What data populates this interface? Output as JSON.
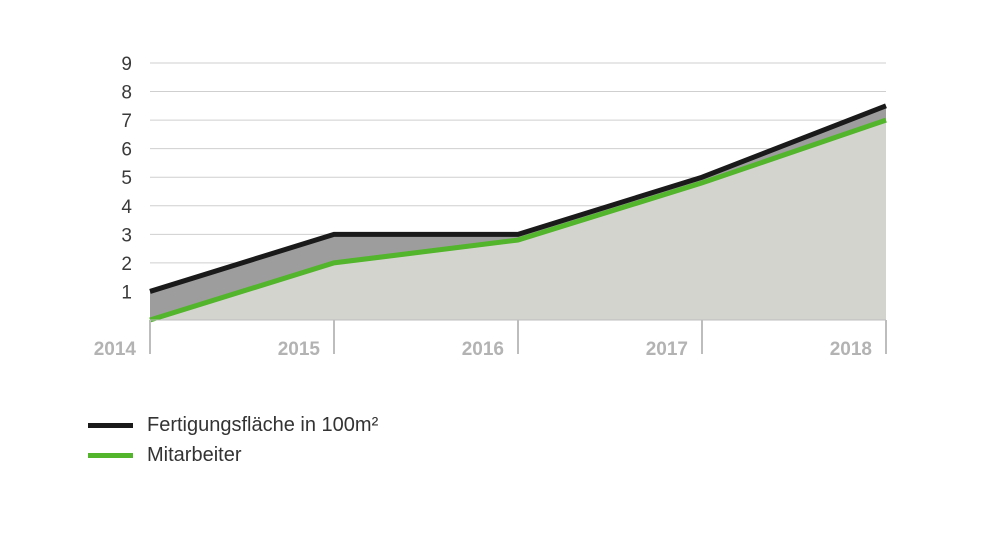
{
  "chart_data": {
    "type": "area",
    "x": [
      "2014",
      "2015",
      "2016",
      "2017",
      "2018"
    ],
    "yticks": [
      "1",
      "2",
      "3",
      "4",
      "5",
      "6",
      "7",
      "8",
      "9"
    ],
    "ylim": [
      0,
      9
    ],
    "grid": true,
    "legend_position": "bottom-left",
    "series": [
      {
        "name": "Fertigungsfläche in 100m²",
        "values": [
          1,
          3,
          3,
          5,
          7.5
        ],
        "color": "#1a1a1a",
        "fill": "#9d9d9d"
      },
      {
        "name": "Mitarbeiter",
        "values": [
          0,
          2,
          2.8,
          4.8,
          7
        ],
        "color": "#52b52b",
        "fill": "#d4d4cf"
      }
    ]
  }
}
